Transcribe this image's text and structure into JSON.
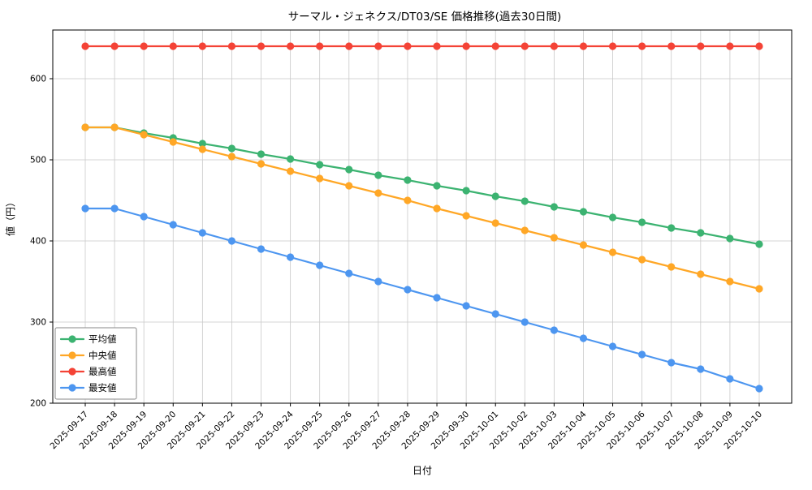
{
  "figure": {
    "background_color": "#ffffff",
    "grid_color": "#c9c9c9",
    "frame_color": "#000000"
  },
  "chart_data": {
    "type": "line",
    "title": "サーマル・ジェネクス/DT03/SE 価格推移(過去30日間)",
    "xlabel": "日付",
    "ylabel": "値（円）",
    "ylim": [
      200,
      660
    ],
    "yticks": [
      200,
      300,
      400,
      500,
      600
    ],
    "grid": true,
    "legend_position": "lower left",
    "categories": [
      "2025-09-17",
      "2025-09-18",
      "2025-09-19",
      "2025-09-20",
      "2025-09-21",
      "2025-09-22",
      "2025-09-23",
      "2025-09-24",
      "2025-09-25",
      "2025-09-26",
      "2025-09-27",
      "2025-09-28",
      "2025-09-29",
      "2025-09-30",
      "2025-10-01",
      "2025-10-02",
      "2025-10-03",
      "2025-10-04",
      "2025-10-05",
      "2025-10-06",
      "2025-10-07",
      "2025-10-08",
      "2025-10-09",
      "2025-10-10"
    ],
    "series": [
      {
        "name": "平均値",
        "color": "#3cb371",
        "values": [
          540,
          540,
          533,
          527,
          520,
          514,
          507,
          501,
          494,
          488,
          481,
          475,
          468,
          462,
          455,
          449,
          442,
          436,
          429,
          423,
          416,
          410,
          403,
          396
        ]
      },
      {
        "name": "中央値",
        "color": "#ffa726",
        "values": [
          540,
          540,
          531,
          522,
          513,
          504,
          495,
          486,
          477,
          468,
          459,
          450,
          440,
          431,
          422,
          413,
          404,
          395,
          386,
          377,
          368,
          359,
          350,
          341
        ]
      },
      {
        "name": "最高値",
        "color": "#f44336",
        "values": [
          640,
          640,
          640,
          640,
          640,
          640,
          640,
          640,
          640,
          640,
          640,
          640,
          640,
          640,
          640,
          640,
          640,
          640,
          640,
          640,
          640,
          640,
          640,
          640
        ]
      },
      {
        "name": "最安値",
        "color": "#4d96f0",
        "values": [
          440,
          440,
          430,
          420,
          410,
          400,
          390,
          380,
          370,
          360,
          350,
          340,
          330,
          320,
          310,
          300,
          290,
          280,
          270,
          260,
          250,
          242,
          230,
          218
        ]
      }
    ]
  }
}
